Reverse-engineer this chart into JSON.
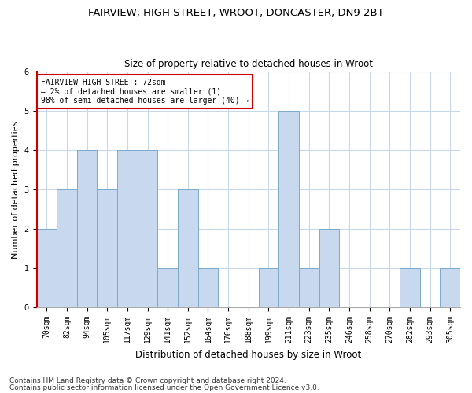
{
  "title_line1": "FAIRVIEW, HIGH STREET, WROOT, DONCASTER, DN9 2BT",
  "title_line2": "Size of property relative to detached houses in Wroot",
  "xlabel": "Distribution of detached houses by size in Wroot",
  "ylabel": "Number of detached properties",
  "categories": [
    "70sqm",
    "82sqm",
    "94sqm",
    "105sqm",
    "117sqm",
    "129sqm",
    "141sqm",
    "152sqm",
    "164sqm",
    "176sqm",
    "188sqm",
    "199sqm",
    "211sqm",
    "223sqm",
    "235sqm",
    "246sqm",
    "258sqm",
    "270sqm",
    "282sqm",
    "293sqm",
    "305sqm"
  ],
  "values": [
    2,
    3,
    4,
    3,
    4,
    4,
    1,
    3,
    1,
    0,
    0,
    1,
    5,
    1,
    2,
    0,
    0,
    0,
    1,
    0,
    1
  ],
  "bar_color": "#c8d8ee",
  "bar_edge_color": "#7aaaca",
  "highlight_bar_index": 0,
  "highlight_edge_color": "#cc0000",
  "annotation_text": "FAIRVIEW HIGH STREET: 72sqm\n← 2% of detached houses are smaller (1)\n98% of semi-detached houses are larger (40) →",
  "annotation_box_edge_color": "#cc0000",
  "ylim": [
    0,
    6
  ],
  "yticks": [
    0,
    1,
    2,
    3,
    4,
    5,
    6
  ],
  "background_color": "#ffffff",
  "grid_color": "#c8d8e8",
  "footer_line1": "Contains HM Land Registry data © Crown copyright and database right 2024.",
  "footer_line2": "Contains public sector information licensed under the Open Government Licence v3.0.",
  "title_fontsize": 9.5,
  "subtitle_fontsize": 8.5,
  "ylabel_fontsize": 8,
  "xlabel_fontsize": 8.5,
  "tick_fontsize": 7,
  "annotation_fontsize": 7,
  "footer_fontsize": 6.5
}
